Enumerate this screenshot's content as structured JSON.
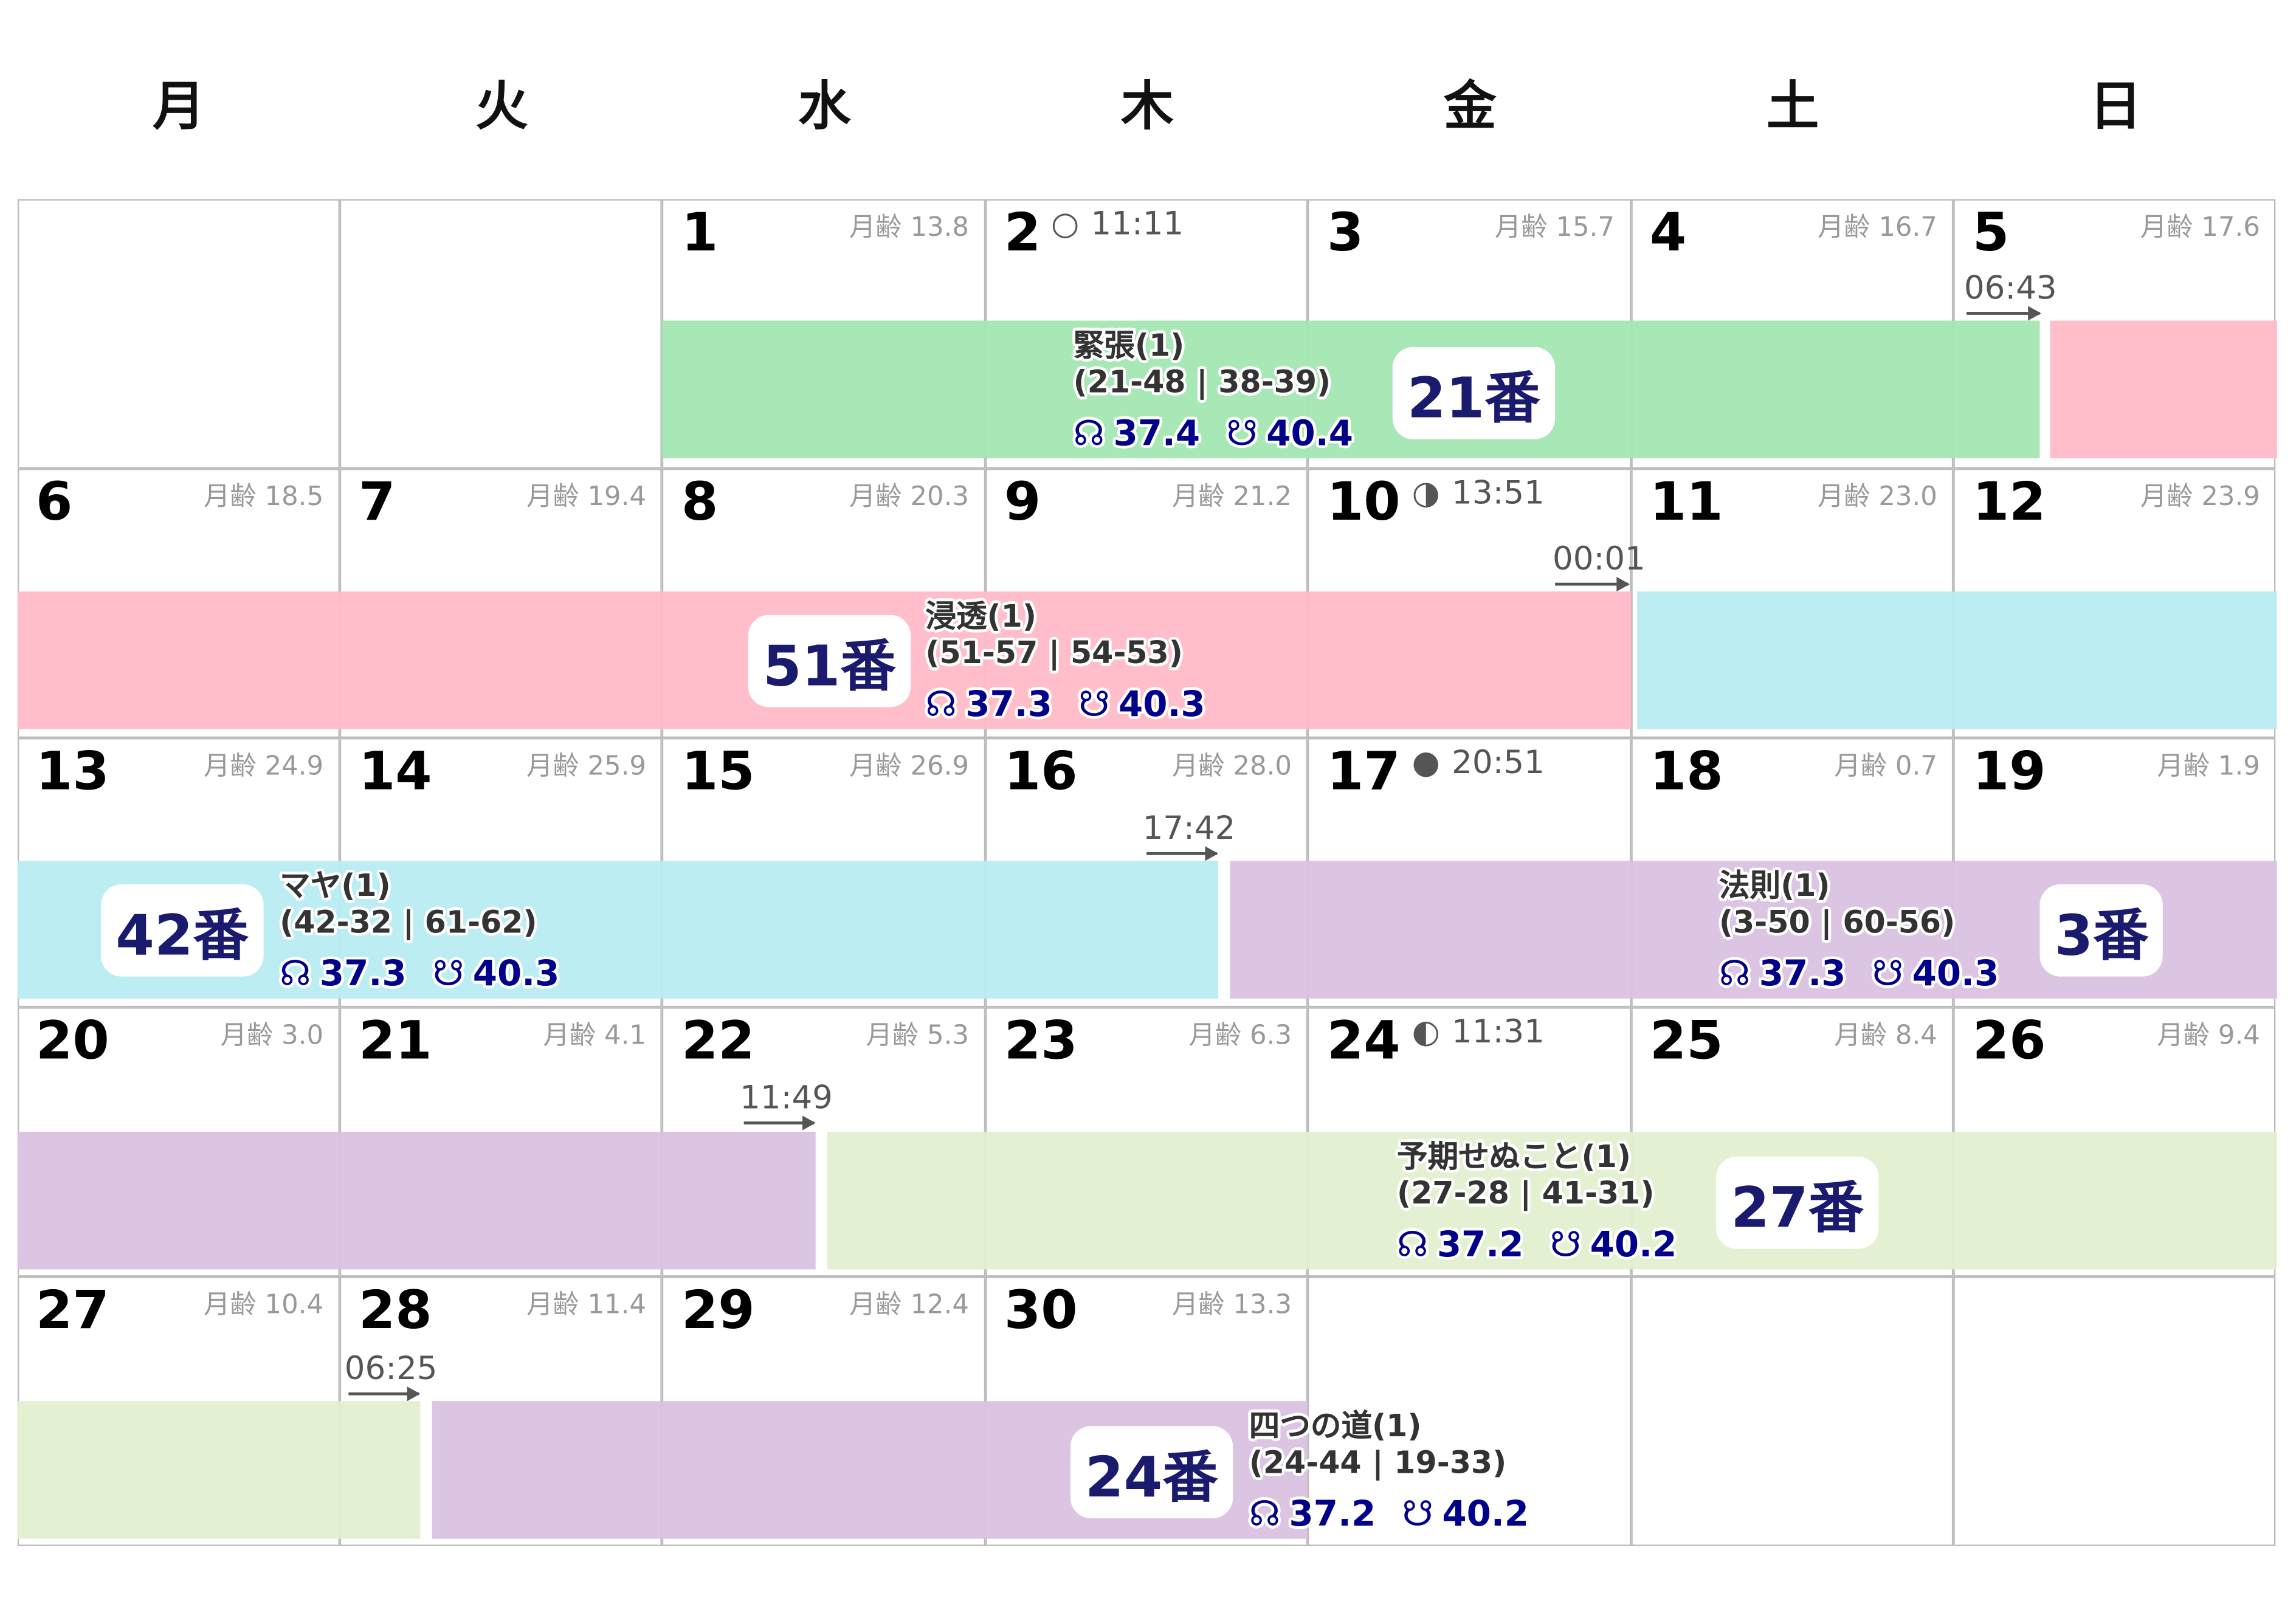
{
  "weekdays": [
    "月",
    "火",
    "水",
    "木",
    "金",
    "土",
    "日"
  ],
  "weeks": [
    [
      null,
      null,
      {
        "day": "1",
        "age": "月齢 13.8"
      },
      {
        "day": "2",
        "phase_icon": "full-moon-icon",
        "phase_glyph": "○",
        "phase_time": "11:11"
      },
      {
        "day": "3",
        "age": "月齢 15.7"
      },
      {
        "day": "4",
        "age": "月齢 16.7"
      },
      {
        "day": "5",
        "age": "月齢 17.6"
      }
    ],
    [
      {
        "day": "6",
        "age": "月齢 18.5"
      },
      {
        "day": "7",
        "age": "月齢 19.4"
      },
      {
        "day": "8",
        "age": "月齢 20.3"
      },
      {
        "day": "9",
        "age": "月齢 21.2"
      },
      {
        "day": "10",
        "phase_icon": "last-quarter-moon-icon",
        "phase_glyph": "◑",
        "phase_time": "13:51"
      },
      {
        "day": "11",
        "age": "月齢 23.0"
      },
      {
        "day": "12",
        "age": "月齢 23.9"
      }
    ],
    [
      {
        "day": "13",
        "age": "月齢 24.9"
      },
      {
        "day": "14",
        "age": "月齢 25.9"
      },
      {
        "day": "15",
        "age": "月齢 26.9"
      },
      {
        "day": "16",
        "age": "月齢 28.0"
      },
      {
        "day": "17",
        "phase_icon": "new-moon-icon",
        "phase_glyph": "●",
        "phase_time": "20:51"
      },
      {
        "day": "18",
        "age": "月齢 0.7"
      },
      {
        "day": "19",
        "age": "月齢 1.9"
      }
    ],
    [
      {
        "day": "20",
        "age": "月齢 3.0"
      },
      {
        "day": "21",
        "age": "月齢 4.1"
      },
      {
        "day": "22",
        "age": "月齢 5.3"
      },
      {
        "day": "23",
        "age": "月齢 6.3"
      },
      {
        "day": "24",
        "phase_icon": "first-quarter-moon-icon",
        "phase_glyph": "◐",
        "phase_time": "11:31"
      },
      {
        "day": "25",
        "age": "月齢 8.4"
      },
      {
        "day": "26",
        "age": "月齢 9.4"
      }
    ],
    [
      {
        "day": "27",
        "age": "月齢 10.4"
      },
      {
        "day": "28",
        "age": "月齢 11.4"
      },
      {
        "day": "29",
        "age": "月齢 12.4"
      },
      {
        "day": "30",
        "age": "月齢 13.3"
      },
      null,
      null,
      null
    ]
  ],
  "colors": {
    "green": "#a3e6b2",
    "pink": "#ffbbc7",
    "cyan": "#b8ecf2",
    "purple": "#d9c2e2",
    "lightgreen": "#e2f0d0",
    "badge_text": "#1a1a6e",
    "values": "#00008b"
  },
  "transitions": [
    "06:43",
    "00:01",
    "17:42",
    "11:49",
    "06:25"
  ],
  "events": [
    {
      "gate": "21番",
      "name": "緊張(1)",
      "lines": "(21-48 | 38-39)",
      "node_icon": "☊",
      "node_value": "37.4",
      "south_icon": "☋",
      "south_value": "40.4"
    },
    {
      "gate": "51番",
      "name": "浸透(1)",
      "lines": "(51-57 | 54-53)",
      "node_icon": "☊",
      "node_value": "37.3",
      "south_icon": "☋",
      "south_value": "40.3"
    },
    {
      "gate": "42番",
      "name": "マヤ(1)",
      "lines": "(42-32 | 61-62)",
      "node_icon": "☊",
      "node_value": "37.3",
      "south_icon": "☋",
      "south_value": "40.3"
    },
    {
      "gate": "3番",
      "name": "法則(1)",
      "lines": "(3-50 | 60-56)",
      "node_icon": "☊",
      "node_value": "37.3",
      "south_icon": "☋",
      "south_value": "40.3"
    },
    {
      "gate": "27番",
      "name": "予期せぬこと(1)",
      "lines": "(27-28 | 41-31)",
      "node_icon": "☊",
      "node_value": "37.2",
      "south_icon": "☋",
      "south_value": "40.2"
    },
    {
      "gate": "24番",
      "name": "四つの道(1)",
      "lines": "(24-44 | 19-33)",
      "node_icon": "☊",
      "node_value": "37.2",
      "south_icon": "☋",
      "south_value": "40.2"
    }
  ]
}
